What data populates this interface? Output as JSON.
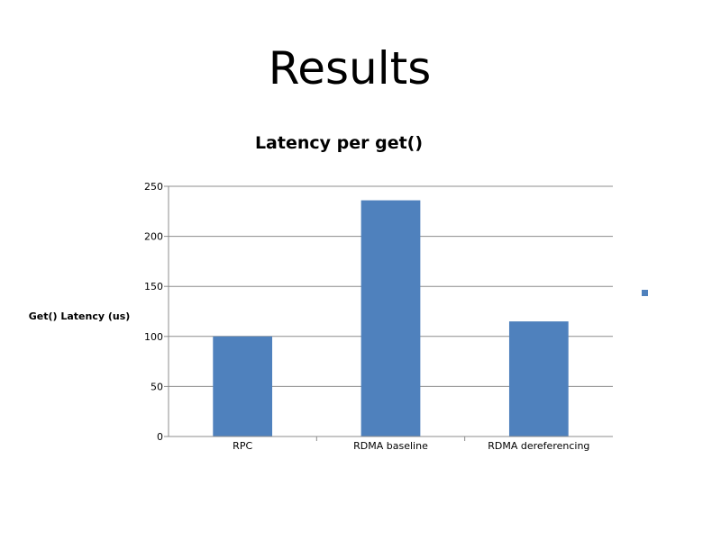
{
  "slide": {
    "title": "Results"
  },
  "chart_data": {
    "type": "bar",
    "title": "Latency per get()",
    "xlabel": "",
    "ylabel": "Get() Latency (us)",
    "categories": [
      "RPC",
      "RDMA baseline",
      "RDMA dereferencing"
    ],
    "values": [
      100,
      236,
      115
    ],
    "ylim": [
      0,
      250
    ],
    "yticks": [
      0,
      50,
      100,
      150,
      200,
      250
    ],
    "grid": true,
    "legend": "right",
    "colors": {
      "bar": "#4f81bd",
      "grid": "#8c8c8c",
      "axis": "#8c8c8c"
    }
  }
}
